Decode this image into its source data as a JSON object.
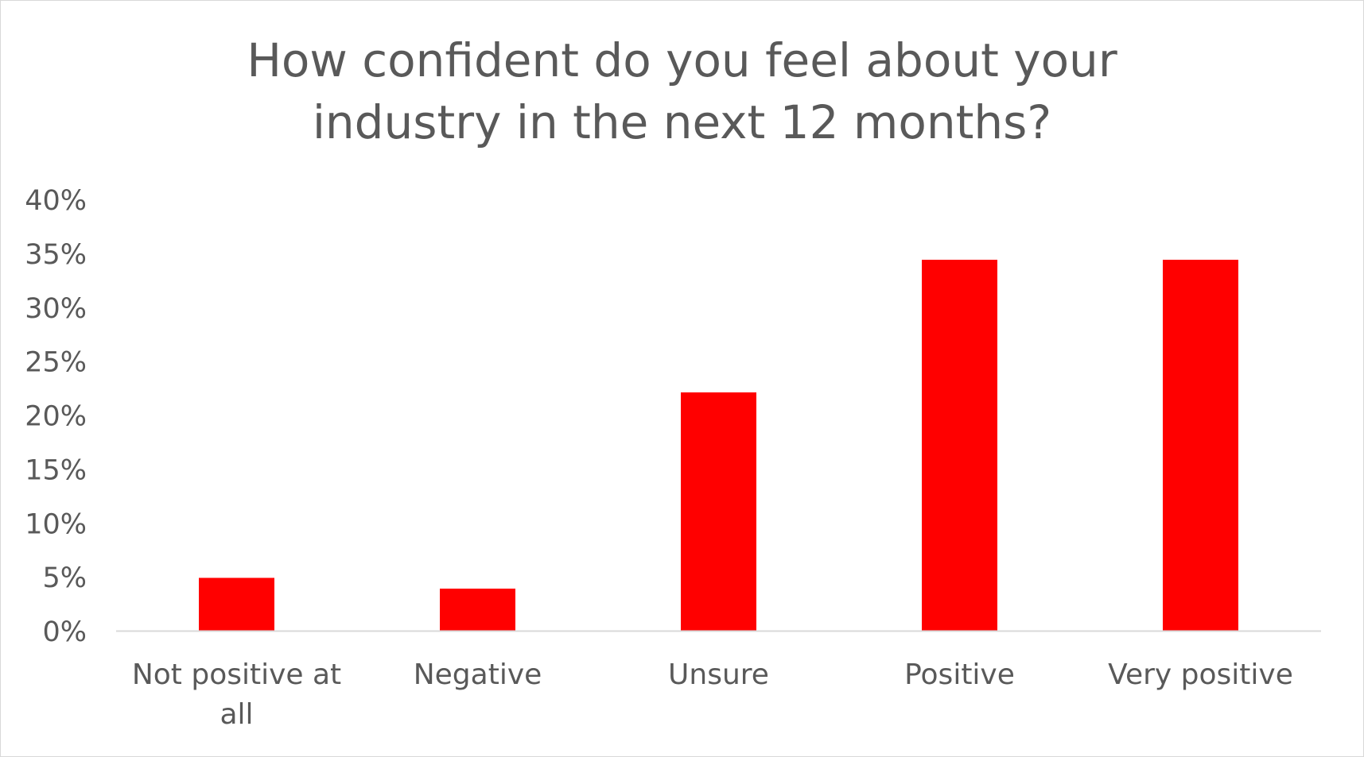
{
  "chart_data": {
    "type": "bar",
    "title": "How confident do you feel about your\nindustry in the next 12 months?",
    "categories": [
      "Not positive at all",
      "Negative",
      "Unsure",
      "Positive",
      "Very positive"
    ],
    "category_label_lines": [
      [
        "Not positive at",
        "all"
      ],
      [
        "Negative"
      ],
      [
        "Unsure"
      ],
      [
        "Positive"
      ],
      [
        "Very positive"
      ]
    ],
    "values": [
      4.9,
      3.9,
      22.1,
      34.4,
      34.4
    ],
    "value_format": "percent",
    "ylim": [
      0,
      40
    ],
    "yticks": [
      0,
      5,
      10,
      15,
      20,
      25,
      30,
      35,
      40
    ],
    "ytick_labels": [
      "0%",
      "5%",
      "10%",
      "15%",
      "20%",
      "25%",
      "30%",
      "35%",
      "40%"
    ],
    "xlabel": "",
    "ylabel": "",
    "grid": false,
    "legend": "none",
    "bar_color": "#ff0000",
    "axis_color": "#d9d9d9",
    "text_color": "#595959"
  }
}
